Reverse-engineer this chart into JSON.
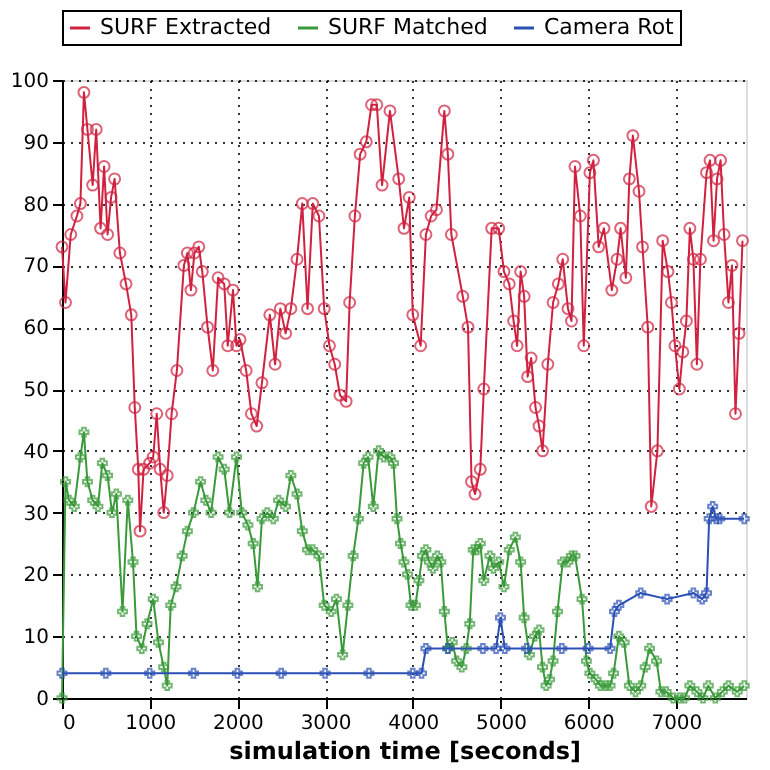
{
  "chart_data": {
    "type": "line",
    "xlabel": "simulation time [seconds]",
    "xlim": [
      0,
      7800
    ],
    "xticks": [
      0,
      1000,
      2000,
      3000,
      4000,
      5000,
      6000,
      7000
    ],
    "ylim": [
      0,
      100
    ],
    "yticks": [
      0,
      10,
      20,
      30,
      40,
      50,
      60,
      70,
      80,
      90,
      100
    ],
    "grid": true,
    "legend": "top",
    "series": [
      {
        "name": "SURF Extracted",
        "color": "#d0213f",
        "marker": "circle",
        "x": [
          0,
          40,
          100,
          170,
          210,
          250,
          290,
          350,
          390,
          440,
          480,
          520,
          560,
          600,
          660,
          730,
          790,
          830,
          870,
          890,
          930,
          1000,
          1040,
          1080,
          1120,
          1160,
          1200,
          1250,
          1310,
          1390,
          1430,
          1470,
          1510,
          1560,
          1600,
          1660,
          1720,
          1780,
          1850,
          1890,
          1950,
          1990,
          2030,
          2100,
          2160,
          2220,
          2280,
          2370,
          2430,
          2490,
          2550,
          2610,
          2680,
          2740,
          2800,
          2860,
          2930,
          2990,
          3050,
          3110,
          3170,
          3240,
          3280,
          3340,
          3400,
          3470,
          3530,
          3590,
          3650,
          3740,
          3840,
          3900,
          3960,
          4000,
          4090,
          4150,
          4210,
          4270,
          4360,
          4400,
          4440,
          4570,
          4630,
          4670,
          4710,
          4770,
          4810,
          4900,
          4980,
          5040,
          5100,
          5150,
          5190,
          5230,
          5270,
          5310,
          5350,
          5400,
          5440,
          5480,
          5540,
          5600,
          5660,
          5710,
          5770,
          5810,
          5850,
          5910,
          5950,
          6020,
          6060,
          6120,
          6180,
          6270,
          6330,
          6370,
          6430,
          6470,
          6510,
          6580,
          6620,
          6680,
          6720,
          6790,
          6850,
          6910,
          6950,
          6990,
          7040,
          7080,
          7120,
          7160,
          7200,
          7240,
          7280,
          7350,
          7390,
          7430,
          7470,
          7510,
          7550,
          7600,
          7640,
          7680,
          7720,
          7760
        ],
        "values": [
          73,
          64,
          75,
          78,
          80,
          98,
          92,
          83,
          92,
          76,
          86,
          75,
          81,
          84,
          72,
          67,
          62,
          47,
          37,
          27,
          37,
          38,
          39,
          46,
          37,
          30,
          36,
          46,
          53,
          70,
          72,
          66,
          72,
          73,
          69,
          60,
          53,
          68,
          67,
          57,
          66,
          57,
          58,
          53,
          46,
          44,
          51,
          62,
          54,
          63,
          59,
          63,
          71,
          80,
          63,
          80,
          78,
          63,
          57,
          54,
          49,
          48,
          64,
          78,
          88,
          90,
          96,
          96,
          83,
          95,
          84,
          76,
          81,
          62,
          57,
          75,
          78,
          79,
          95,
          88,
          75,
          65,
          60,
          35,
          33,
          37,
          50,
          76,
          76,
          69,
          67,
          61,
          57,
          69,
          65,
          52,
          55,
          47,
          44,
          40,
          54,
          64,
          67,
          71,
          63,
          61,
          86,
          78,
          57,
          85,
          87,
          73,
          76,
          66,
          71,
          76,
          68,
          84,
          91,
          82,
          73,
          60,
          31,
          40,
          74,
          69,
          64,
          57,
          50,
          56,
          61,
          76,
          71,
          54,
          71,
          85,
          87,
          74,
          84,
          87,
          75,
          64,
          70,
          46,
          59,
          74
        ]
      },
      {
        "name": "SURF Matched",
        "color": "#3a9a3a",
        "marker": "cross",
        "x": [
          0,
          40,
          80,
          140,
          210,
          250,
          290,
          350,
          410,
          460,
          520,
          570,
          620,
          690,
          750,
          810,
          850,
          910,
          970,
          1040,
          1100,
          1160,
          1200,
          1240,
          1300,
          1370,
          1430,
          1500,
          1580,
          1640,
          1700,
          1780,
          1850,
          1910,
          1990,
          2050,
          2120,
          2180,
          2230,
          2280,
          2340,
          2410,
          2470,
          2550,
          2610,
          2680,
          2740,
          2800,
          2860,
          2930,
          2990,
          3070,
          3130,
          3200,
          3260,
          3320,
          3380,
          3440,
          3490,
          3550,
          3610,
          3670,
          3740,
          3780,
          3820,
          3860,
          3900,
          3940,
          3980,
          4030,
          4070,
          4110,
          4150,
          4190,
          4230,
          4280,
          4320,
          4360,
          4400,
          4450,
          4500,
          4560,
          4610,
          4650,
          4690,
          4730,
          4770,
          4810,
          4880,
          4920,
          4980,
          5040,
          5100,
          5170,
          5230,
          5270,
          5330,
          5390,
          5440,
          5480,
          5520,
          5560,
          5600,
          5650,
          5710,
          5770,
          5810,
          5850,
          5930,
          5980,
          6020,
          6090,
          6140,
          6200,
          6250,
          6290,
          6350,
          6410,
          6470,
          6540,
          6600,
          6650,
          6700,
          6780,
          6830,
          6890,
          6970,
          7040,
          7100,
          7160,
          7240,
          7310,
          7370,
          7450,
          7530,
          7600,
          7700,
          7780
        ],
        "values": [
          0,
          35,
          32,
          31,
          39,
          43,
          35,
          32,
          31,
          38,
          36,
          30,
          33,
          14,
          32,
          22,
          10,
          8,
          12,
          16,
          9,
          5,
          2,
          15,
          18,
          23,
          27,
          30,
          35,
          32,
          30,
          39,
          37,
          30,
          39,
          30,
          28,
          25,
          18,
          29,
          30,
          29,
          32,
          31,
          36,
          33,
          27,
          24,
          24,
          23,
          15,
          14,
          16,
          7,
          15,
          23,
          29,
          38,
          39,
          31,
          40,
          39,
          39,
          38,
          29,
          25,
          22,
          20,
          15,
          15,
          19,
          23,
          24,
          22,
          21,
          23,
          22,
          14,
          8,
          9,
          6,
          5,
          8,
          12,
          24,
          24,
          25,
          19,
          23,
          21,
          22,
          18,
          24,
          26,
          22,
          13,
          7,
          10,
          11,
          5,
          2,
          3,
          6,
          14,
          22,
          22,
          23,
          23,
          16,
          6,
          4,
          3,
          2,
          2,
          2,
          4,
          10,
          9,
          2,
          1,
          2,
          5,
          8,
          6,
          1,
          1,
          0,
          0,
          0,
          2,
          1,
          0,
          2,
          0,
          1,
          2,
          1,
          2
        ]
      },
      {
        "name": "Camera Rot",
        "color": "#2a4fb5",
        "marker": "cross",
        "x": [
          0,
          500,
          1000,
          1500,
          2000,
          2500,
          3000,
          3500,
          4000,
          4100,
          4150,
          4400,
          4800,
          4950,
          5000,
          5050,
          5300,
          5700,
          6000,
          6250,
          6300,
          6350,
          6600,
          6900,
          7200,
          7300,
          7350,
          7380,
          7420,
          7460,
          7500,
          7780
        ],
        "values": [
          4,
          4,
          4,
          4,
          4,
          4,
          4,
          4,
          4,
          4,
          8,
          8,
          8,
          8,
          13,
          8,
          8,
          8,
          8,
          8,
          14,
          15,
          17,
          16,
          17,
          16,
          17,
          29,
          31,
          29,
          29,
          29
        ]
      }
    ]
  }
}
